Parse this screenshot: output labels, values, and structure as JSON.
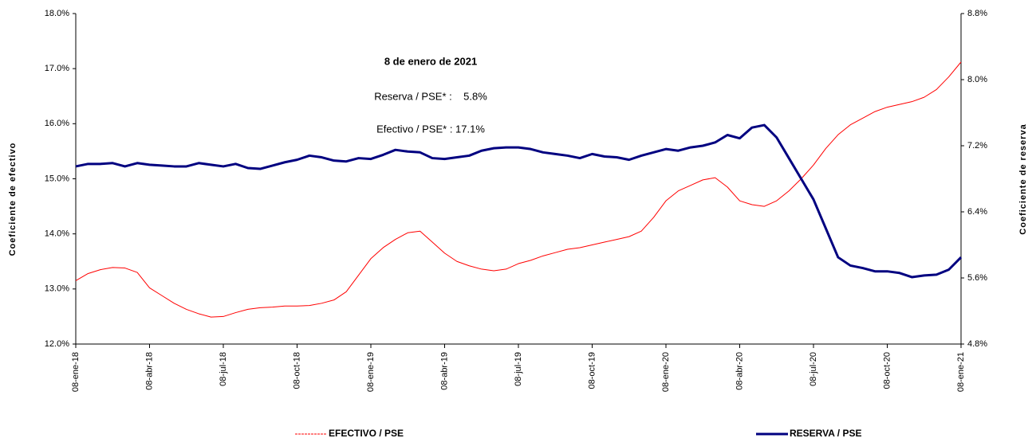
{
  "chart_data": {
    "type": "line",
    "annotations": [
      "8 de enero de 2021",
      "Reserva / PSE* :    5.8%",
      "Efectivo / PSE* : 17.1%"
    ],
    "ylabel": "Coeficiente de efectivo",
    "y2label": "Coeficiente de reserva",
    "categories": [
      "08-ene-18",
      null,
      null,
      null,
      null,
      null,
      "08-abr-18",
      null,
      null,
      null,
      null,
      null,
      "08-jul-18",
      null,
      null,
      null,
      null,
      null,
      "08-oct-18",
      null,
      null,
      null,
      null,
      null,
      "08-ene-19",
      null,
      null,
      null,
      null,
      null,
      "08-abr-19",
      null,
      null,
      null,
      null,
      null,
      "08-jul-19",
      null,
      null,
      null,
      null,
      null,
      "08-oct-19",
      null,
      null,
      null,
      null,
      null,
      "08-ene-20",
      null,
      null,
      null,
      null,
      null,
      "08-abr-20",
      null,
      null,
      null,
      null,
      null,
      "08-jul-20",
      null,
      null,
      null,
      null,
      null,
      "08-oct-20",
      null,
      null,
      null,
      null,
      null,
      "08-ene-21"
    ],
    "series": [
      {
        "name": "EFECTIVO / PSE",
        "color": "#ff0000",
        "axis": "y",
        "values": [
          13.15,
          13.28,
          13.35,
          13.39,
          13.38,
          13.3,
          13.02,
          12.88,
          12.74,
          12.63,
          12.55,
          12.49,
          12.5,
          12.57,
          12.63,
          12.66,
          12.67,
          12.69,
          12.69,
          12.7,
          12.74,
          12.8,
          12.95,
          13.25,
          13.55,
          13.75,
          13.9,
          14.02,
          14.05,
          13.85,
          13.65,
          13.5,
          13.42,
          13.36,
          13.33,
          13.36,
          13.46,
          13.52,
          13.6,
          13.66,
          13.72,
          13.75,
          13.8,
          13.85,
          13.9,
          13.95,
          14.05,
          14.3,
          14.6,
          14.78,
          14.88,
          14.98,
          15.02,
          14.85,
          14.6,
          14.53,
          14.5,
          14.6,
          14.78,
          15.0,
          15.25,
          15.55,
          15.8,
          15.98,
          16.1,
          16.22,
          16.3,
          16.35,
          16.4,
          16.48,
          16.62,
          16.85,
          17.12
        ]
      },
      {
        "name": "RESERVA / PSE",
        "color": "#000080",
        "axis": "y2",
        "values": [
          6.95,
          6.98,
          6.98,
          6.99,
          6.95,
          6.99,
          6.97,
          6.96,
          6.95,
          6.95,
          6.99,
          6.97,
          6.95,
          6.98,
          6.93,
          6.92,
          6.96,
          7.0,
          7.03,
          7.08,
          7.06,
          7.02,
          7.01,
          7.05,
          7.04,
          7.09,
          7.15,
          7.13,
          7.12,
          7.05,
          7.04,
          7.06,
          7.08,
          7.14,
          7.17,
          7.18,
          7.18,
          7.16,
          7.12,
          7.1,
          7.08,
          7.05,
          7.1,
          7.07,
          7.06,
          7.03,
          7.08,
          7.12,
          7.16,
          7.14,
          7.18,
          7.2,
          7.24,
          7.33,
          7.29,
          7.42,
          7.45,
          7.3,
          7.05,
          6.8,
          6.55,
          6.2,
          5.85,
          5.75,
          5.72,
          5.68,
          5.68,
          5.66,
          5.61,
          5.63,
          5.64,
          5.7,
          5.85
        ]
      }
    ],
    "ylim": [
      12,
      18
    ],
    "yticks": [
      {
        "value": 12,
        "label": "12.0%"
      },
      {
        "value": 13,
        "label": "13.0%"
      },
      {
        "value": 14,
        "label": "14.0%"
      },
      {
        "value": 15,
        "label": "15.0%"
      },
      {
        "value": 16,
        "label": "16.0%"
      },
      {
        "value": 17,
        "label": "17.0%"
      },
      {
        "value": 18,
        "label": "18.0%"
      }
    ],
    "y2lim": [
      4.8,
      8.8
    ],
    "y2ticks": [
      {
        "value": 4.8,
        "label": "4.8%"
      },
      {
        "value": 5.6,
        "label": "5.6%"
      },
      {
        "value": 6.4,
        "label": "6.4%"
      },
      {
        "value": 7.2,
        "label": "7.2%"
      },
      {
        "value": 8.0,
        "label": "8.0%"
      },
      {
        "value": 8.8,
        "label": "8.8%"
      }
    ],
    "grid": false
  }
}
